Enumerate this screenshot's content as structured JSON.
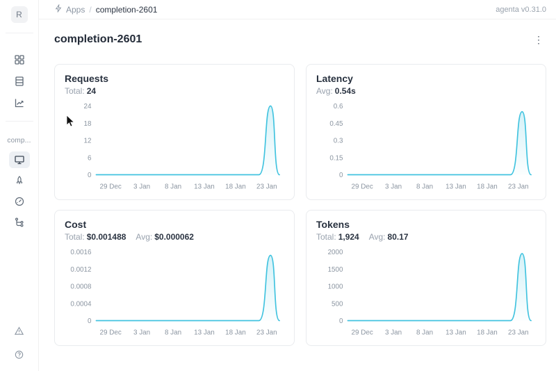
{
  "topbar": {
    "breadcrumb": {
      "root": "Apps",
      "separator": "/",
      "current": "completion-2601"
    },
    "version": "agenta v0.31.0"
  },
  "sidebar": {
    "avatar_letter": "R",
    "workspace_label": "comp...",
    "main_nav": [
      {
        "name": "apps",
        "icon": "grid-apps-icon"
      },
      {
        "name": "test-sets",
        "icon": "table-list-icon"
      },
      {
        "name": "observability",
        "icon": "chart-line-icon"
      }
    ],
    "app_nav": [
      {
        "name": "overview",
        "icon": "monitor-icon",
        "selected": true
      },
      {
        "name": "playground",
        "icon": "rocket-icon",
        "selected": false
      },
      {
        "name": "evaluations",
        "icon": "gauge-icon",
        "selected": false
      },
      {
        "name": "traces",
        "icon": "tree-icon",
        "selected": false
      }
    ],
    "footer_nav": [
      {
        "name": "alerts",
        "icon": "alert-triangle-icon"
      },
      {
        "name": "help",
        "icon": "help-circle-icon"
      }
    ]
  },
  "page": {
    "title": "completion-2601"
  },
  "chart_data": [
    {
      "type": "area",
      "title": "Requests",
      "stats": [
        {
          "label": "Total:",
          "value": "24"
        }
      ],
      "x_ticks": [
        "29 Dec",
        "3 Jan",
        "8 Jan",
        "13 Jan",
        "18 Jan",
        "23 Jan"
      ],
      "y_ticks": [
        "0",
        "6",
        "12",
        "18",
        "24"
      ],
      "y_max": 24,
      "baseline_value": 0,
      "peak_value": 24,
      "series_shape": "flat at 0 from 29 Dec, single narrow spike just after 23 Jan, returns to 0",
      "line_color": "#41c3df",
      "grid": false,
      "legend": false
    },
    {
      "type": "area",
      "title": "Latency",
      "stats": [
        {
          "label": "Avg:",
          "value": "0.54s"
        }
      ],
      "x_ticks": [
        "29 Dec",
        "3 Jan",
        "8 Jan",
        "13 Jan",
        "18 Jan",
        "23 Jan"
      ],
      "y_ticks": [
        "0",
        "0.15",
        "0.3",
        "0.45",
        "0.6"
      ],
      "y_max": 0.6,
      "baseline_value": 0,
      "peak_value": 0.55,
      "series_shape": "flat at 0 from 29 Dec, single narrow spike just after 23 Jan, returns to 0",
      "line_color": "#41c3df",
      "grid": false,
      "legend": false
    },
    {
      "type": "area",
      "title": "Cost",
      "stats": [
        {
          "label": "Total:",
          "value": "$0.001488"
        },
        {
          "label": "Avg:",
          "value": "$0.000062"
        }
      ],
      "x_ticks": [
        "29 Dec",
        "3 Jan",
        "8 Jan",
        "13 Jan",
        "18 Jan",
        "23 Jan"
      ],
      "y_ticks": [
        "0",
        "0.0004",
        "0.0008",
        "0.0012",
        "0.0016"
      ],
      "y_max": 0.0016,
      "baseline_value": 0,
      "peak_value": 0.00152,
      "series_shape": "flat at 0 from 29 Dec, single narrow spike just after 23 Jan, returns to 0",
      "line_color": "#41c3df",
      "grid": false,
      "legend": false
    },
    {
      "type": "area",
      "title": "Tokens",
      "stats": [
        {
          "label": "Total:",
          "value": "1,924"
        },
        {
          "label": "Avg:",
          "value": "80.17"
        }
      ],
      "x_ticks": [
        "29 Dec",
        "3 Jan",
        "8 Jan",
        "13 Jan",
        "18 Jan",
        "23 Jan"
      ],
      "y_ticks": [
        "0",
        "500",
        "1000",
        "1500",
        "2000"
      ],
      "y_max": 2000,
      "baseline_value": 0,
      "peak_value": 1950,
      "series_shape": "flat at 0 from 29 Dec, single narrow spike just after 23 Jan, returns to 0",
      "line_color": "#41c3df",
      "grid": false,
      "legend": false
    }
  ]
}
